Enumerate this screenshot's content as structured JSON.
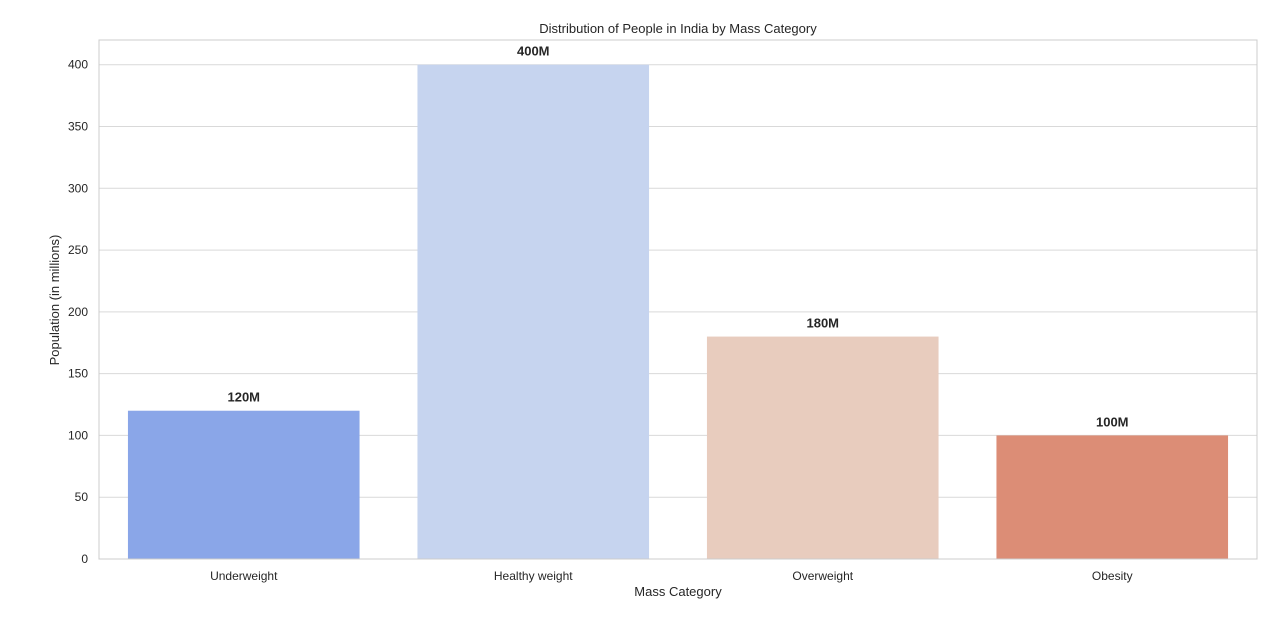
{
  "chart_data": {
    "type": "bar",
    "title": "Distribution of People in India by Mass Category",
    "xlabel": "Mass Category",
    "ylabel": "Population (in millions)",
    "categories": [
      "Underweight",
      "Healthy weight",
      "Overweight",
      "Obesity"
    ],
    "values": [
      120,
      400,
      180,
      100
    ],
    "data_labels": [
      "120M",
      "400M",
      "180M",
      "100M"
    ],
    "colors": [
      "#8aa6e8",
      "#c6d4ef",
      "#e8ccbe",
      "#dc8d76"
    ],
    "ylim": [
      0,
      420
    ],
    "yticks": [
      0,
      50,
      100,
      150,
      200,
      250,
      300,
      350,
      400
    ],
    "grid": true,
    "legend": "none"
  }
}
